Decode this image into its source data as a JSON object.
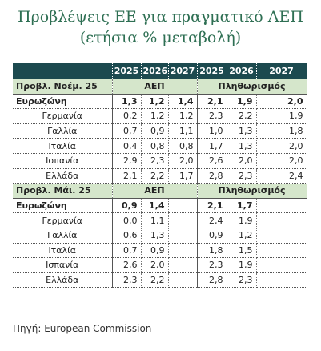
{
  "title": {
    "line1": "Προβλέψεις ΕΕ για πραγματικό ΑΕΠ",
    "line2": "(ετήσια % μεταβολή)"
  },
  "table": {
    "years": [
      "2025",
      "2026",
      "2027",
      "2025",
      "2026",
      "2027"
    ],
    "sections": [
      {
        "label": "Προβλ. Νοέμ. 25",
        "gdp": "ΑΕΠ",
        "inflation": "Πληθωρισμός",
        "rows": [
          {
            "name": "Ευρωζώνη",
            "gdp": [
              "1,3",
              "1,2",
              "1,4"
            ],
            "inflation": [
              "2,1",
              "1,9",
              "2,0"
            ]
          },
          {
            "name": "Γερμανία",
            "gdp": [
              "0,2",
              "1,2",
              "1,2"
            ],
            "inflation": [
              "2,3",
              "2,2",
              "1,9"
            ]
          },
          {
            "name": "Γαλλία",
            "gdp": [
              "0,7",
              "0,9",
              "1,1"
            ],
            "inflation": [
              "1,0",
              "1,3",
              "1,8"
            ]
          },
          {
            "name": "Ιταλία",
            "gdp": [
              "0,4",
              "0,8",
              "0,8"
            ],
            "inflation": [
              "1,7",
              "1,3",
              "2,0"
            ]
          },
          {
            "name": "Ισπανία",
            "gdp": [
              "2,9",
              "2,3",
              "2,0"
            ],
            "inflation": [
              "2,6",
              "2,0",
              "2,0"
            ]
          },
          {
            "name": "Ελλάδα",
            "gdp": [
              "2,1",
              "2,2",
              "1,7"
            ],
            "inflation": [
              "2,8",
              "2,3",
              "2,4"
            ]
          }
        ]
      },
      {
        "label": "Προβλ. Μάι. 25",
        "gdp": "ΑΕΠ",
        "inflation": "Πληθωρισμός",
        "rows": [
          {
            "name": "Ευρωζώνη",
            "gdp": [
              "0,9",
              "1,4"
            ],
            "inflation": [
              "2,1",
              "1,7"
            ]
          },
          {
            "name": "Γερμανία",
            "gdp": [
              "0,0",
              "1,1"
            ],
            "inflation": [
              "2,4",
              "1,9"
            ]
          },
          {
            "name": "Γαλλία",
            "gdp": [
              "0,6",
              "1,3"
            ],
            "inflation": [
              "0,9",
              "1,2"
            ]
          },
          {
            "name": "Ιταλία",
            "gdp": [
              "0,7",
              "0,9"
            ],
            "inflation": [
              "1,8",
              "1,5"
            ]
          },
          {
            "name": "Ισπανία",
            "gdp": [
              "2,6",
              "2,0"
            ],
            "inflation": [
              "2,3",
              "1,9"
            ]
          },
          {
            "name": "Ελλάδα",
            "gdp": [
              "2,3",
              "2,2"
            ],
            "inflation": [
              "2,8",
              "2,3"
            ]
          }
        ]
      }
    ]
  },
  "source": "Πηγή: European Commission"
}
